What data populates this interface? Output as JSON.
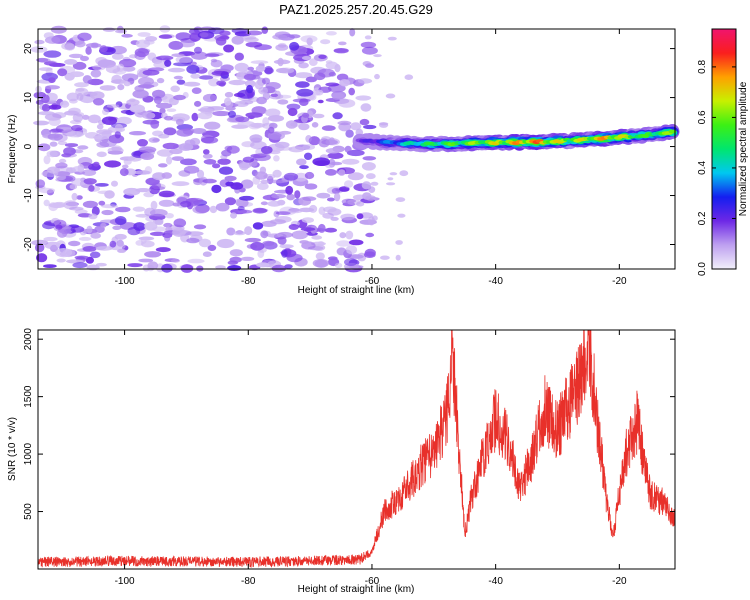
{
  "title": "PAZ1.2025.257.20.45.G29",
  "chart_data": [
    {
      "type": "heatmap",
      "name": "spectrogram",
      "xlabel": "Height of straight line (km)",
      "ylabel": "Frequency (Hz)",
      "xlim": [
        -114,
        -11
      ],
      "ylim": [
        -25,
        24
      ],
      "x_ticks": [
        -100,
        -80,
        -60,
        -40,
        -20
      ],
      "y_ticks": [
        -20,
        -10,
        0,
        10,
        20
      ],
      "colorbar": {
        "label": "Normalized spectral amplitude",
        "range": [
          0,
          0.95
        ],
        "ticks": [
          0.0,
          0.2,
          0.4,
          0.6,
          0.8
        ]
      },
      "noise_region_x": [
        -114,
        -60
      ],
      "signal_ridge": {
        "x": [
          -62,
          -58,
          -52,
          -46,
          -40,
          -34,
          -28,
          -22,
          -16,
          -11
        ],
        "freq": [
          1.2,
          0.8,
          0.5,
          0.6,
          0.8,
          0.9,
          1.2,
          1.7,
          2.3,
          3.0
        ],
        "peak_amplitude": [
          0.2,
          0.35,
          0.55,
          0.65,
          0.75,
          0.9,
          0.7,
          0.85,
          0.6,
          0.7
        ]
      }
    },
    {
      "type": "line",
      "name": "snr",
      "xlabel": "Height of straight line (km)",
      "ylabel": "SNR (10 * v/v)",
      "xlim": [
        -114,
        -11
      ],
      "ylim": [
        0,
        2080
      ],
      "x_ticks": [
        -100,
        -80,
        -60,
        -40,
        -20
      ],
      "y_ticks": [
        500,
        1000,
        1500,
        2000
      ],
      "color": "#e8302a",
      "envelope_x": [
        -114,
        -100,
        -80,
        -62,
        -60,
        -58,
        -55,
        -52,
        -50,
        -48,
        -47,
        -46,
        -45,
        -44,
        -42,
        -40,
        -38,
        -36,
        -34,
        -32,
        -30,
        -28,
        -26,
        -25,
        -24,
        -22,
        -21,
        -19,
        -17,
        -16,
        -15,
        -13,
        -11
      ],
      "envelope_y": [
        60,
        70,
        60,
        80,
        150,
        500,
        650,
        900,
        1000,
        1300,
        1850,
        1100,
        300,
        600,
        1000,
        1300,
        1100,
        700,
        1000,
        1400,
        1200,
        1450,
        1650,
        2080,
        1500,
        550,
        300,
        1000,
        1300,
        900,
        650,
        580,
        420
      ]
    }
  ]
}
